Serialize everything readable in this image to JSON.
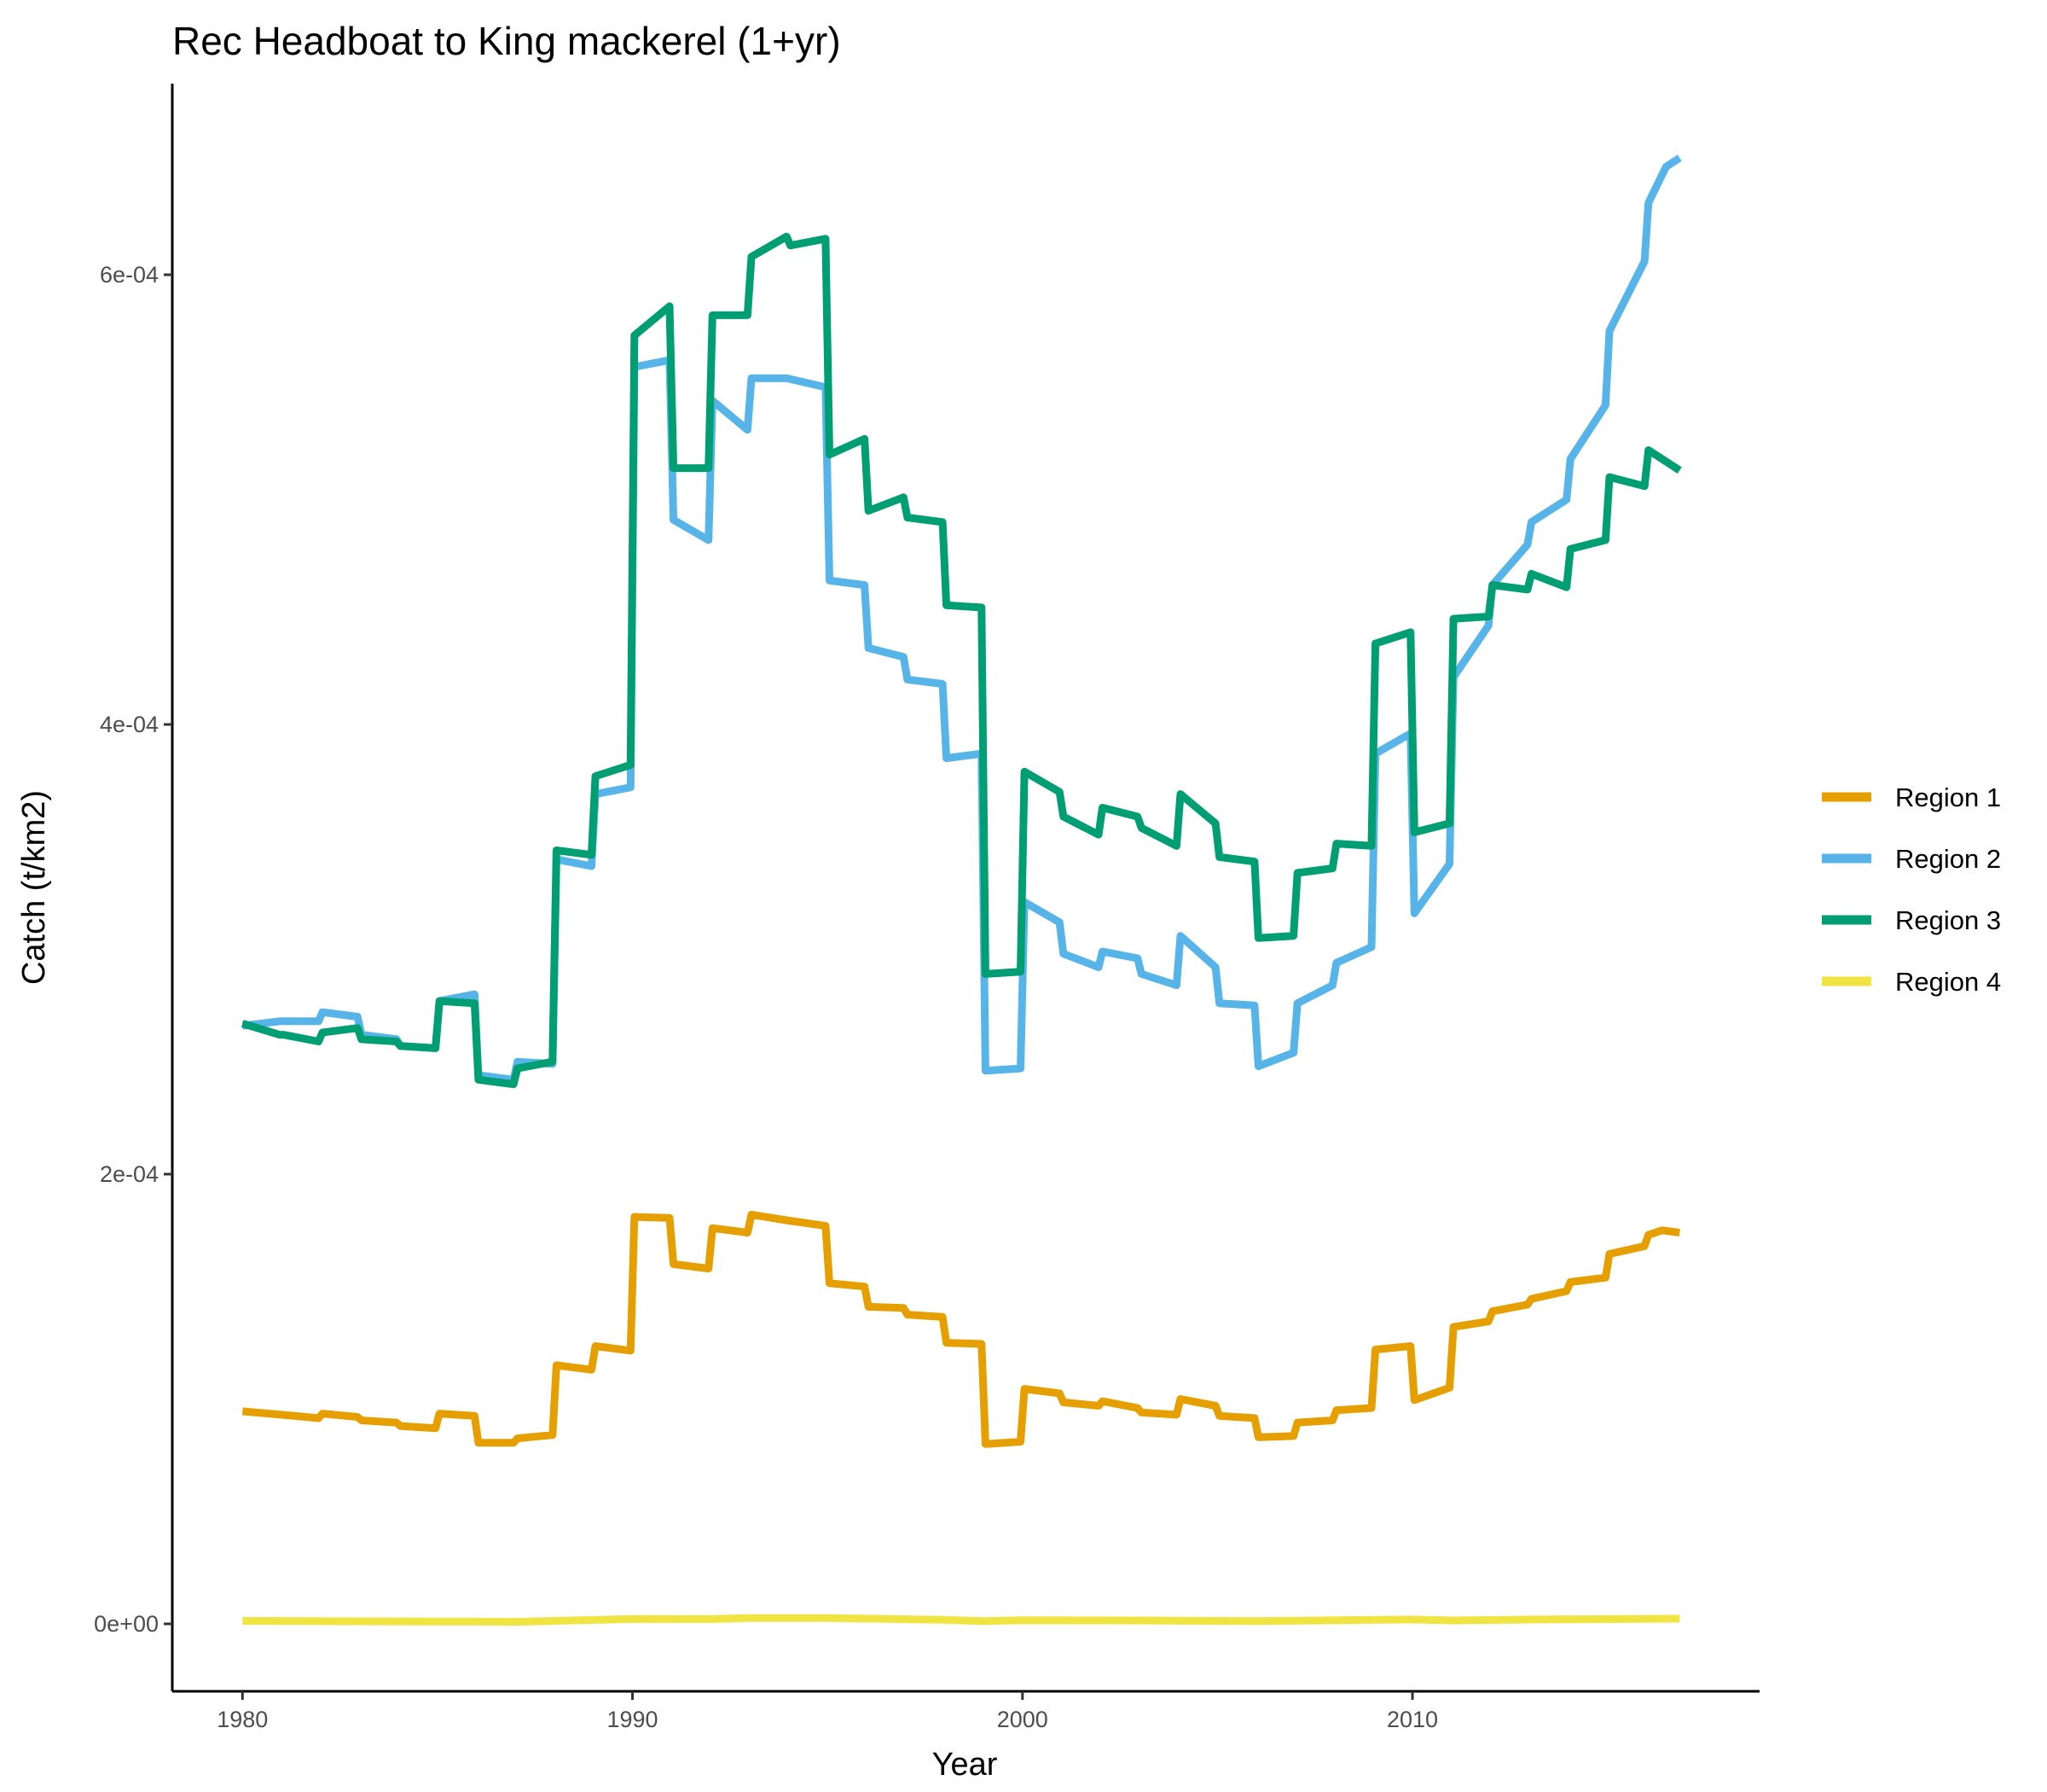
{
  "chart_data": {
    "type": "line",
    "title": "Rec Headboat to King mackerel (1+yr)",
    "xlabel": "Year",
    "ylabel": "Catch (t/km2)",
    "xlim": [
      1978.2,
      2018.9
    ],
    "ylim": [
      -3e-05,
      0.000685
    ],
    "x_ticks": [
      1980,
      1990,
      2000,
      2010
    ],
    "x_tick_labels": [
      "1980",
      "1990",
      "2000",
      "2010"
    ],
    "y_ticks": [
      0,
      0.0002,
      0.0004,
      0.0006
    ],
    "y_tick_labels": [
      "0e+00",
      "2e-04",
      "4e-04",
      "6e-04"
    ],
    "legend_position": "right",
    "grid": false,
    "series": [
      {
        "name": "Region 1",
        "color": "#E69F00",
        "points": [
          [
            1980.0,
            9.45e-05
          ],
          [
            1981.0,
            9.3e-05
          ],
          [
            1981.95,
            9.15e-05
          ],
          [
            1982.05,
            9.35e-05
          ],
          [
            1982.95,
            9.2e-05
          ],
          [
            1983.05,
            9.05e-05
          ],
          [
            1983.95,
            8.95e-05
          ],
          [
            1984.05,
            8.8e-05
          ],
          [
            1984.95,
            8.7e-05
          ],
          [
            1985.05,
            9.35e-05
          ],
          [
            1985.95,
            9.25e-05
          ],
          [
            1986.05,
            8.05e-05
          ],
          [
            1986.95,
            8.05e-05
          ],
          [
            1987.05,
            8.25e-05
          ],
          [
            1987.95,
            8.4e-05
          ],
          [
            1988.05,
            0.000115
          ],
          [
            1988.95,
            0.000113
          ],
          [
            1989.05,
            0.0001235
          ],
          [
            1989.95,
            0.0001215
          ],
          [
            1990.05,
            0.000181
          ],
          [
            1990.95,
            0.0001805
          ],
          [
            1991.05,
            0.00016
          ],
          [
            1991.95,
            0.000158
          ],
          [
            1992.05,
            0.000176
          ],
          [
            1992.95,
            0.000174
          ],
          [
            1993.05,
            0.000182
          ],
          [
            1993.95,
            0.0001795
          ],
          [
            1994.95,
            0.000177
          ],
          [
            1995.05,
            0.0001515
          ],
          [
            1995.95,
            0.00015
          ],
          [
            1996.05,
            0.000141
          ],
          [
            1996.95,
            0.0001405
          ],
          [
            1997.05,
            0.0001375
          ],
          [
            1997.95,
            0.0001365
          ],
          [
            1998.05,
            0.000125
          ],
          [
            1998.95,
            0.0001245
          ],
          [
            1999.05,
            8e-05
          ],
          [
            1999.95,
            8.1e-05
          ],
          [
            2000.05,
            0.0001045
          ],
          [
            2000.95,
            0.0001025
          ],
          [
            2001.05,
            9.85e-05
          ],
          [
            2001.95,
            9.7e-05
          ],
          [
            2002.05,
            9.9e-05
          ],
          [
            2002.95,
            9.6e-05
          ],
          [
            2003.05,
            9.4e-05
          ],
          [
            2003.95,
            9.3e-05
          ],
          [
            2004.05,
            0.0001
          ],
          [
            2004.95,
            9.7e-05
          ],
          [
            2005.05,
            9.25e-05
          ],
          [
            2005.95,
            9.15e-05
          ],
          [
            2006.05,
            8.3e-05
          ],
          [
            2006.95,
            8.35e-05
          ],
          [
            2007.05,
            8.95e-05
          ],
          [
            2007.95,
            9.05e-05
          ],
          [
            2008.05,
            9.5e-05
          ],
          [
            2008.95,
            9.6e-05
          ],
          [
            2009.05,
            0.000122
          ],
          [
            2009.95,
            0.0001235
          ],
          [
            2010.05,
            9.95e-05
          ],
          [
            2010.95,
            0.000105
          ],
          [
            2011.05,
            0.000132
          ],
          [
            2011.95,
            0.0001345
          ],
          [
            2012.05,
            0.000139
          ],
          [
            2012.95,
            0.000142
          ],
          [
            2013.05,
            0.0001445
          ],
          [
            2013.95,
            0.000148
          ],
          [
            2014.05,
            0.000152
          ],
          [
            2014.95,
            0.000154
          ],
          [
            2015.05,
            0.0001645
          ],
          [
            2015.95,
            0.000168
          ],
          [
            2016.05,
            0.000173
          ],
          [
            2016.4,
            0.000175
          ],
          [
            2016.85,
            0.000174
          ]
        ]
      },
      {
        "name": "Region 2",
        "color": "#56B4E9",
        "points": [
          [
            1980.0,
            0.000266
          ],
          [
            1980.95,
            0.000268
          ],
          [
            1981.05,
            0.000268
          ],
          [
            1981.95,
            0.000268
          ],
          [
            1982.05,
            0.000272
          ],
          [
            1982.95,
            0.00027
          ],
          [
            1983.05,
            0.000262
          ],
          [
            1983.95,
            0.00026
          ],
          [
            1984.05,
            0.000257
          ],
          [
            1984.95,
            0.000256
          ],
          [
            1985.05,
            0.000277
          ],
          [
            1985.95,
            0.00028
          ],
          [
            1986.05,
            0.000244
          ],
          [
            1986.95,
            0.000242
          ],
          [
            1987.05,
            0.00025
          ],
          [
            1987.95,
            0.000249
          ],
          [
            1988.05,
            0.00034
          ],
          [
            1988.95,
            0.000337
          ],
          [
            1989.05,
            0.000369
          ],
          [
            1989.95,
            0.000372
          ],
          [
            1990.05,
            0.000559
          ],
          [
            1990.95,
            0.000562
          ],
          [
            1991.05,
            0.000491
          ],
          [
            1991.95,
            0.000482
          ],
          [
            1992.05,
            0.000544
          ],
          [
            1992.95,
            0.000531
          ],
          [
            1993.05,
            0.000554
          ],
          [
            1993.95,
            0.000554
          ],
          [
            1994.95,
            0.00055
          ],
          [
            1995.05,
            0.000464
          ],
          [
            1995.95,
            0.000462
          ],
          [
            1996.05,
            0.000434
          ],
          [
            1996.95,
            0.00043
          ],
          [
            1997.05,
            0.00042
          ],
          [
            1997.95,
            0.000418
          ],
          [
            1998.05,
            0.000385
          ],
          [
            1998.95,
            0.000387
          ],
          [
            1999.05,
            0.000246
          ],
          [
            1999.95,
            0.000247
          ],
          [
            2000.05,
            0.000321
          ],
          [
            2000.95,
            0.000312
          ],
          [
            2001.05,
            0.000298
          ],
          [
            2001.95,
            0.000292
          ],
          [
            2002.05,
            0.000299
          ],
          [
            2002.95,
            0.000296
          ],
          [
            2003.05,
            0.000289
          ],
          [
            2003.95,
            0.000284
          ],
          [
            2004.05,
            0.000306
          ],
          [
            2004.95,
            0.000292
          ],
          [
            2005.05,
            0.000276
          ],
          [
            2005.95,
            0.000275
          ],
          [
            2006.05,
            0.000248
          ],
          [
            2006.95,
            0.000254
          ],
          [
            2007.05,
            0.000276
          ],
          [
            2007.95,
            0.000284
          ],
          [
            2008.05,
            0.000294
          ],
          [
            2008.95,
            0.000301
          ],
          [
            2009.05,
            0.000387
          ],
          [
            2009.95,
            0.000396
          ],
          [
            2010.05,
            0.000316
          ],
          [
            2010.95,
            0.000338
          ],
          [
            2011.05,
            0.000421
          ],
          [
            2011.95,
            0.000444
          ],
          [
            2012.05,
            0.000462
          ],
          [
            2012.95,
            0.00048
          ],
          [
            2013.05,
            0.00049
          ],
          [
            2013.95,
            0.0005
          ],
          [
            2014.05,
            0.000518
          ],
          [
            2014.95,
            0.000542
          ],
          [
            2015.05,
            0.000575
          ],
          [
            2015.95,
            0.000606
          ],
          [
            2016.05,
            0.000632
          ],
          [
            2016.5,
            0.000648
          ],
          [
            2016.85,
            0.000652
          ]
        ]
      },
      {
        "name": "Region 3",
        "color": "#009E73",
        "points": [
          [
            1980.0,
            0.000267
          ],
          [
            1980.95,
            0.000262
          ],
          [
            1981.05,
            0.000262
          ],
          [
            1981.95,
            0.000259
          ],
          [
            1982.05,
            0.000263
          ],
          [
            1982.95,
            0.000265
          ],
          [
            1983.05,
            0.00026
          ],
          [
            1983.95,
            0.000259
          ],
          [
            1984.05,
            0.000257
          ],
          [
            1984.95,
            0.000256
          ],
          [
            1985.05,
            0.000277
          ],
          [
            1985.95,
            0.000276
          ],
          [
            1986.05,
            0.000242
          ],
          [
            1986.95,
            0.00024
          ],
          [
            1987.05,
            0.000247
          ],
          [
            1987.95,
            0.00025
          ],
          [
            1988.05,
            0.000344
          ],
          [
            1988.95,
            0.000342
          ],
          [
            1989.05,
            0.000377
          ],
          [
            1989.95,
            0.000382
          ],
          [
            1990.05,
            0.000573
          ],
          [
            1990.95,
            0.000586
          ],
          [
            1991.05,
            0.000514
          ],
          [
            1991.95,
            0.000514
          ],
          [
            1992.05,
            0.000582
          ],
          [
            1992.95,
            0.000582
          ],
          [
            1993.05,
            0.000608
          ],
          [
            1993.95,
            0.000617
          ],
          [
            1994.05,
            0.000613
          ],
          [
            1994.95,
            0.000616
          ],
          [
            1995.05,
            0.00052
          ],
          [
            1995.95,
            0.000527
          ],
          [
            1996.05,
            0.000495
          ],
          [
            1996.95,
            0.000501
          ],
          [
            1997.05,
            0.000492
          ],
          [
            1997.95,
            0.00049
          ],
          [
            1998.05,
            0.000453
          ],
          [
            1998.95,
            0.000452
          ],
          [
            1999.05,
            0.000289
          ],
          [
            1999.95,
            0.00029
          ],
          [
            2000.05,
            0.000379
          ],
          [
            2000.95,
            0.00037
          ],
          [
            2001.05,
            0.000359
          ],
          [
            2001.95,
            0.000351
          ],
          [
            2002.05,
            0.000363
          ],
          [
            2002.95,
            0.000359
          ],
          [
            2003.05,
            0.000354
          ],
          [
            2003.95,
            0.000346
          ],
          [
            2004.05,
            0.000369
          ],
          [
            2004.95,
            0.000356
          ],
          [
            2005.05,
            0.000341
          ],
          [
            2005.95,
            0.000339
          ],
          [
            2006.05,
            0.000305
          ],
          [
            2006.95,
            0.000306
          ],
          [
            2007.05,
            0.000334
          ],
          [
            2007.95,
            0.000336
          ],
          [
            2008.05,
            0.000347
          ],
          [
            2008.95,
            0.000346
          ],
          [
            2009.05,
            0.000436
          ],
          [
            2009.95,
            0.000441
          ],
          [
            2010.05,
            0.000352
          ],
          [
            2010.95,
            0.000356
          ],
          [
            2011.05,
            0.000447
          ],
          [
            2011.95,
            0.000448
          ],
          [
            2012.05,
            0.000462
          ],
          [
            2012.95,
            0.00046
          ],
          [
            2013.05,
            0.000467
          ],
          [
            2013.95,
            0.000461
          ],
          [
            2014.05,
            0.000478
          ],
          [
            2014.95,
            0.000482
          ],
          [
            2015.05,
            0.00051
          ],
          [
            2015.95,
            0.000506
          ],
          [
            2016.05,
            0.000522
          ],
          [
            2016.85,
            0.000513
          ]
        ]
      },
      {
        "name": "Region 4",
        "color": "#F0E442",
        "points": [
          [
            1980.0,
            1.3e-06
          ],
          [
            1982.0,
            1.2e-06
          ],
          [
            1984.0,
            1.1e-06
          ],
          [
            1986.0,
            1e-06
          ],
          [
            1987.0,
            9e-07
          ],
          [
            1988.0,
            1.3e-06
          ],
          [
            1990.0,
            2.2e-06
          ],
          [
            1992.0,
            2.1e-06
          ],
          [
            1993.0,
            2.6e-06
          ],
          [
            1995.0,
            2.6e-06
          ],
          [
            1998.0,
            1.8e-06
          ],
          [
            1999.0,
            1.2e-06
          ],
          [
            2000.0,
            1.6e-06
          ],
          [
            2003.0,
            1.5e-06
          ],
          [
            2006.0,
            1.2e-06
          ],
          [
            2009.0,
            1.8e-06
          ],
          [
            2010.0,
            1.9e-06
          ],
          [
            2011.0,
            1.5e-06
          ],
          [
            2013.0,
            1.9e-06
          ],
          [
            2016.85,
            2.3e-06
          ]
        ]
      }
    ]
  }
}
